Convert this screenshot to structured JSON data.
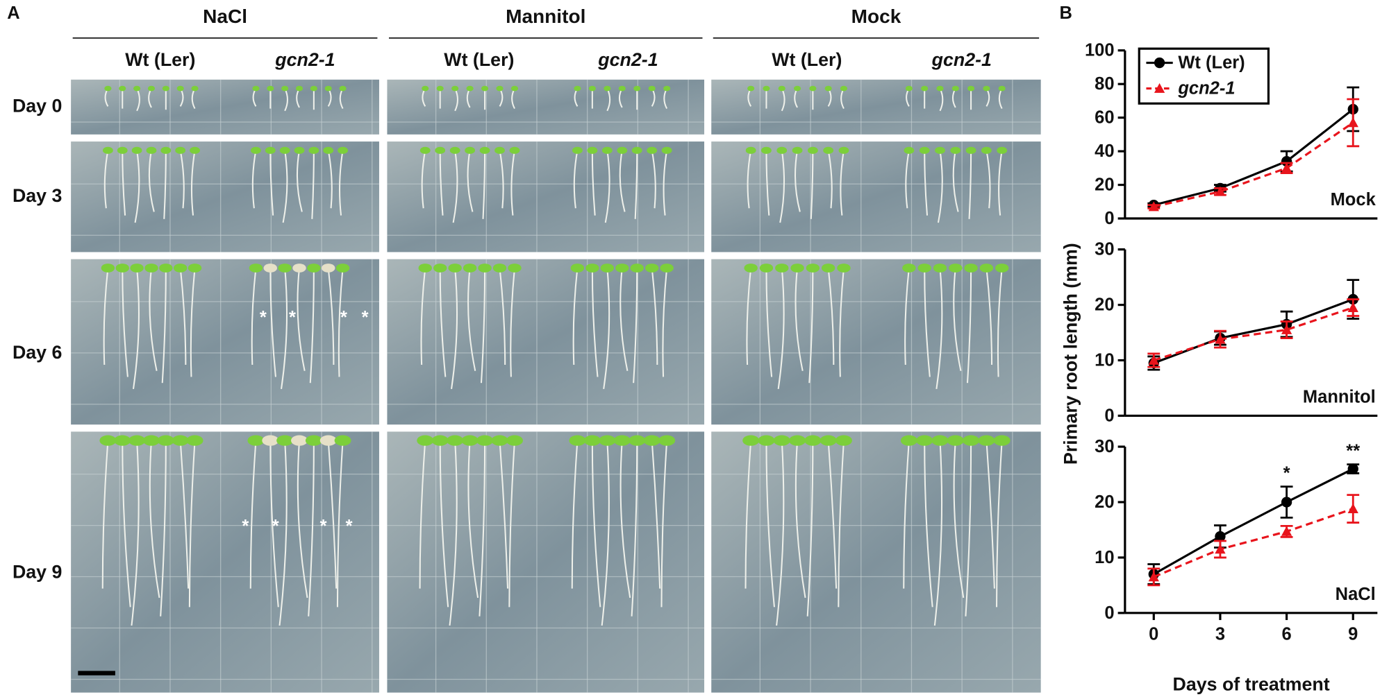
{
  "panel_a": {
    "label": "A",
    "columns": [
      {
        "title": "NaCl",
        "genotypes": [
          "Wt (Ler)",
          "gcn2-1"
        ]
      },
      {
        "title": "Mannitol",
        "genotypes": [
          "Wt (Ler)",
          "gcn2-1"
        ]
      },
      {
        "title": "Mock",
        "genotypes": [
          "Wt (Ler)",
          "gcn2-1"
        ]
      }
    ],
    "rows": [
      "Day 0",
      "Day 3",
      "Day 6",
      "Day 9"
    ],
    "asterisk": "*"
  },
  "panel_b_label": "B",
  "chart_data": [
    {
      "type": "line",
      "annotation": "Mock",
      "x": [
        0,
        3,
        6,
        9
      ],
      "xlim": [
        -1.3,
        10.1
      ],
      "ylim": [
        0,
        100
      ],
      "yticks": [
        0,
        20,
        40,
        60,
        80,
        100
      ],
      "legend": "upper left",
      "series": [
        {
          "name": "Wt (Ler)",
          "color": "#000000",
          "linestyle": "solid",
          "marker": "circle",
          "values": [
            8,
            18,
            34,
            65
          ],
          "errors": [
            1,
            2,
            6,
            13
          ]
        },
        {
          "name": "gcn2-1",
          "color": "#e8141c",
          "linestyle": "dashed",
          "marker": "triangle",
          "values": [
            7,
            16,
            30,
            57
          ],
          "errors": [
            1,
            2,
            3,
            14
          ]
        }
      ]
    },
    {
      "type": "line",
      "annotation": "Mannitol",
      "ylabel": "Primary root length (mm)",
      "x": [
        0,
        3,
        6,
        9
      ],
      "xlim": [
        -1.3,
        10.1
      ],
      "ylim": [
        0,
        30
      ],
      "yticks": [
        0,
        10,
        20,
        30
      ],
      "series": [
        {
          "color": "#000000",
          "linestyle": "solid",
          "marker": "circle",
          "values": [
            9.5,
            14,
            16.5,
            21
          ],
          "errors": [
            1.2,
            1.2,
            2.3,
            3.5
          ]
        },
        {
          "color": "#e8141c",
          "linestyle": "dashed",
          "marker": "triangle",
          "values": [
            10,
            13.8,
            15.5,
            19.5
          ],
          "errors": [
            1.2,
            1.5,
            1.5,
            1.5
          ]
        }
      ]
    },
    {
      "type": "line",
      "annotation": "NaCl",
      "xlabel": "Days of treatment",
      "x": [
        0,
        3,
        6,
        9
      ],
      "xlim": [
        -1.3,
        10.1
      ],
      "xticks": [
        0,
        3,
        6,
        9
      ],
      "ylim": [
        0,
        30
      ],
      "yticks": [
        0,
        10,
        20,
        30
      ],
      "significance": [
        null,
        null,
        "*",
        "**"
      ],
      "series": [
        {
          "color": "#000000",
          "linestyle": "solid",
          "marker": "circle",
          "values": [
            7,
            13.8,
            20,
            26
          ],
          "errors": [
            1.8,
            2,
            2.8,
            0.8
          ]
        },
        {
          "color": "#e8141c",
          "linestyle": "dashed",
          "marker": "triangle",
          "values": [
            6.5,
            11.5,
            14.7,
            18.8
          ],
          "errors": [
            1.5,
            1.5,
            1,
            2.5
          ]
        }
      ]
    }
  ]
}
